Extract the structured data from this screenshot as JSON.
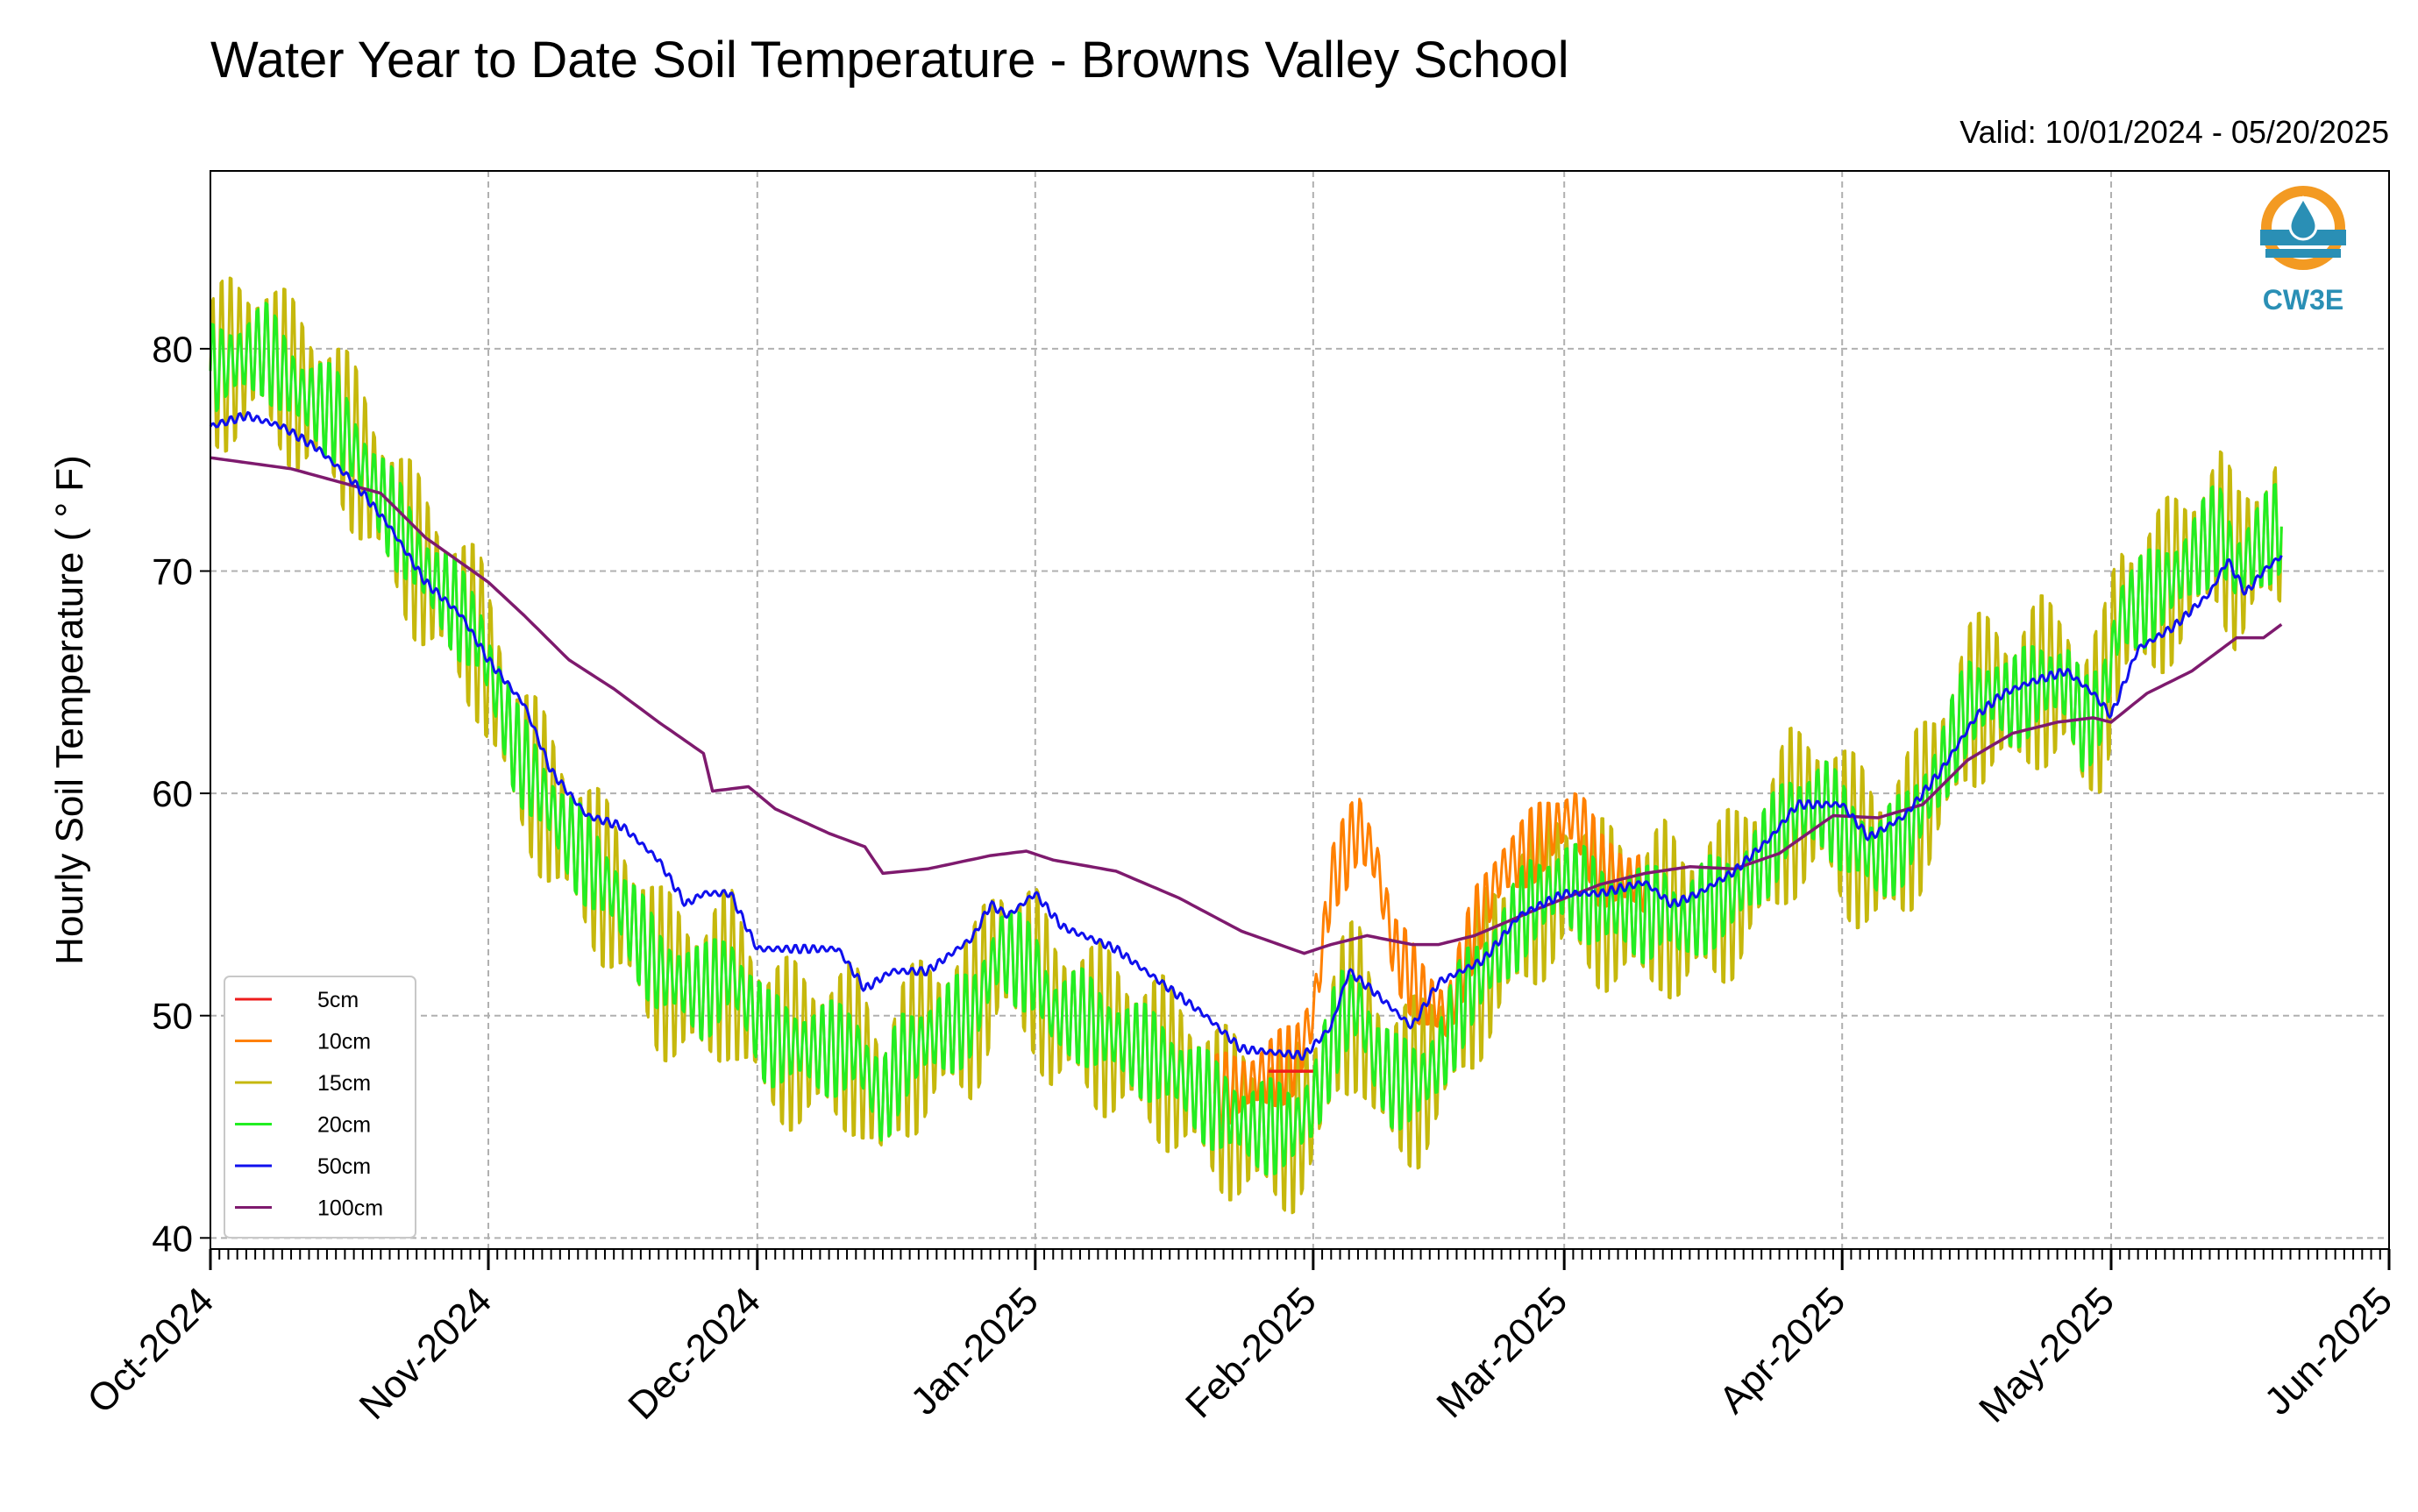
{
  "chart_data": {
    "type": "line",
    "title": "Water Year to Date Soil Temperature - Browns Valley School",
    "subtitle": "Valid: 10/01/2024 - 05/20/2025",
    "ylabel": "Hourly Soil Temperature ( ° F)",
    "xlabel": "",
    "ylim": [
      39.5,
      88
    ],
    "xlim": [
      "2024-10-01",
      "2025-06-01"
    ],
    "yticks": [
      40,
      50,
      60,
      70,
      80
    ],
    "xtick_labels": [
      "Oct-2024",
      "Nov-2024",
      "Dec-2024",
      "Jan-2025",
      "Feb-2025",
      "Mar-2025",
      "Apr-2025",
      "May-2025",
      "Jun-2025"
    ],
    "xtick_dates": [
      "2024-10-01",
      "2024-11-01",
      "2024-12-01",
      "2025-01-01",
      "2025-02-01",
      "2025-03-01",
      "2025-04-01",
      "2025-05-01",
      "2025-06-01"
    ],
    "grid": true,
    "legend_position": "lower-left",
    "logo_text": "CW3E",
    "series": [
      {
        "name": "5cm",
        "color": "#ee1c1c",
        "daily_amplitude": 0,
        "points": [
          [
            "2025-01-27",
            47.5
          ],
          [
            "2025-02-01",
            47.5
          ]
        ]
      },
      {
        "name": "10cm",
        "color": "#ff8000",
        "daily_amplitude": 4,
        "points": [
          [
            "2025-01-21",
            46.5
          ],
          [
            "2025-01-25",
            47
          ],
          [
            "2025-01-30",
            48
          ],
          [
            "2025-02-01",
            50
          ],
          [
            "2025-02-03",
            56
          ],
          [
            "2025-02-06",
            58.5
          ],
          [
            "2025-02-08",
            57
          ],
          [
            "2025-02-10",
            53
          ],
          [
            "2025-02-13",
            51
          ],
          [
            "2025-02-16",
            50
          ],
          [
            "2025-02-19",
            54
          ],
          [
            "2025-02-22",
            56.5
          ],
          [
            "2025-02-25",
            57.5
          ],
          [
            "2025-02-28",
            58.5
          ],
          [
            "2025-03-02",
            59
          ],
          [
            "2025-03-03",
            58.5
          ],
          [
            "2025-03-05",
            56.5
          ],
          [
            "2025-03-10",
            56
          ]
        ]
      },
      {
        "name": "15cm",
        "color": "#c6b80c",
        "daily_amplitude": 9,
        "points": [
          [
            "2024-10-01",
            79
          ],
          [
            "2024-10-07",
            80
          ],
          [
            "2024-10-11",
            78
          ],
          [
            "2024-10-15",
            77
          ],
          [
            "2024-10-19",
            74
          ],
          [
            "2024-10-25",
            70
          ],
          [
            "2024-10-31",
            67
          ],
          [
            "2024-11-04",
            62
          ],
          [
            "2024-11-10",
            58
          ],
          [
            "2024-11-15",
            55.5
          ],
          [
            "2024-11-20",
            52
          ],
          [
            "2024-11-25",
            51
          ],
          [
            "2024-11-28",
            52
          ],
          [
            "2024-12-02",
            49
          ],
          [
            "2024-12-07",
            48.5
          ],
          [
            "2024-12-12",
            48.5
          ],
          [
            "2024-12-15",
            46
          ],
          [
            "2024-12-17",
            48
          ],
          [
            "2024-12-20",
            49
          ],
          [
            "2024-12-25",
            50
          ],
          [
            "2024-12-28",
            53
          ],
          [
            "2025-01-01",
            52
          ],
          [
            "2025-01-03",
            50
          ],
          [
            "2025-01-06",
            50
          ],
          [
            "2025-01-10",
            49
          ],
          [
            "2025-01-15",
            48
          ],
          [
            "2025-01-18",
            47
          ],
          [
            "2025-01-21",
            46
          ],
          [
            "2025-01-25",
            45
          ],
          [
            "2025-01-30",
            45
          ],
          [
            "2025-02-01",
            46
          ],
          [
            "2025-02-04",
            50
          ],
          [
            "2025-02-06",
            50.5
          ],
          [
            "2025-02-08",
            48
          ],
          [
            "2025-02-10",
            47
          ],
          [
            "2025-02-13",
            47
          ],
          [
            "2025-02-15",
            48
          ],
          [
            "2025-02-18",
            51
          ],
          [
            "2025-02-22",
            53
          ],
          [
            "2025-02-25",
            55
          ],
          [
            "2025-03-01",
            56
          ],
          [
            "2025-03-05",
            55
          ],
          [
            "2025-03-10",
            54.5
          ],
          [
            "2025-03-12",
            55
          ],
          [
            "2025-03-14",
            54
          ],
          [
            "2025-03-17",
            55
          ],
          [
            "2025-03-20",
            55.5
          ],
          [
            "2025-03-23",
            57
          ],
          [
            "2025-03-26",
            59
          ],
          [
            "2025-03-30",
            59.5
          ],
          [
            "2025-04-02",
            58
          ],
          [
            "2025-04-05",
            57
          ],
          [
            "2025-04-08",
            58
          ],
          [
            "2025-04-12",
            61
          ],
          [
            "2025-04-15",
            64
          ],
          [
            "2025-04-18",
            64.5
          ],
          [
            "2025-04-20",
            64
          ],
          [
            "2025-04-23",
            65
          ],
          [
            "2025-04-26",
            65
          ],
          [
            "2025-04-28",
            63
          ],
          [
            "2025-04-30",
            64
          ],
          [
            "2025-05-02",
            68
          ],
          [
            "2025-05-06",
            69
          ],
          [
            "2025-05-09",
            70
          ],
          [
            "2025-05-13",
            72
          ],
          [
            "2025-05-15",
            70
          ],
          [
            "2025-05-17",
            71
          ],
          [
            "2025-05-20",
            72
          ]
        ]
      },
      {
        "name": "20cm",
        "color": "#22ee22",
        "daily_amplitude": 5,
        "points": [
          [
            "2024-10-01",
            79
          ],
          [
            "2024-10-07",
            80
          ],
          [
            "2024-10-11",
            78
          ],
          [
            "2024-10-15",
            77
          ],
          [
            "2024-10-19",
            74
          ],
          [
            "2024-10-25",
            70
          ],
          [
            "2024-10-31",
            67
          ],
          [
            "2024-11-04",
            62
          ],
          [
            "2024-11-10",
            58
          ],
          [
            "2024-11-15",
            55.5
          ],
          [
            "2024-11-20",
            52
          ],
          [
            "2024-11-25",
            51
          ],
          [
            "2024-11-28",
            52
          ],
          [
            "2024-12-02",
            49
          ],
          [
            "2024-12-07",
            48.5
          ],
          [
            "2024-12-12",
            48.5
          ],
          [
            "2024-12-15",
            46
          ],
          [
            "2024-12-17",
            48
          ],
          [
            "2024-12-20",
            49
          ],
          [
            "2024-12-25",
            50
          ],
          [
            "2024-12-28",
            53
          ],
          [
            "2025-01-01",
            52
          ],
          [
            "2025-01-03",
            50
          ],
          [
            "2025-01-06",
            50
          ],
          [
            "2025-01-10",
            49
          ],
          [
            "2025-01-15",
            48
          ],
          [
            "2025-01-18",
            47
          ],
          [
            "2025-01-21",
            46
          ],
          [
            "2025-01-25",
            45
          ],
          [
            "2025-01-30",
            45
          ],
          [
            "2025-02-01",
            46
          ],
          [
            "2025-02-04",
            50
          ],
          [
            "2025-02-06",
            50.5
          ],
          [
            "2025-02-08",
            48
          ],
          [
            "2025-02-10",
            47
          ],
          [
            "2025-02-13",
            47
          ],
          [
            "2025-02-15",
            48
          ],
          [
            "2025-02-18",
            51
          ],
          [
            "2025-02-22",
            53
          ],
          [
            "2025-02-25",
            55
          ],
          [
            "2025-03-01",
            56
          ],
          [
            "2025-03-05",
            55
          ],
          [
            "2025-03-10",
            54.5
          ],
          [
            "2025-03-12",
            55
          ],
          [
            "2025-03-14",
            54
          ],
          [
            "2025-03-17",
            55
          ],
          [
            "2025-03-20",
            55.5
          ],
          [
            "2025-03-23",
            57
          ],
          [
            "2025-03-26",
            59
          ],
          [
            "2025-03-30",
            59.5
          ],
          [
            "2025-04-02",
            58
          ],
          [
            "2025-04-05",
            57
          ],
          [
            "2025-04-08",
            58
          ],
          [
            "2025-04-12",
            61
          ],
          [
            "2025-04-15",
            64
          ],
          [
            "2025-04-18",
            64.5
          ],
          [
            "2025-04-20",
            64
          ],
          [
            "2025-04-23",
            65
          ],
          [
            "2025-04-26",
            65
          ],
          [
            "2025-04-28",
            63
          ],
          [
            "2025-04-30",
            64
          ],
          [
            "2025-05-02",
            68
          ],
          [
            "2025-05-06",
            69
          ],
          [
            "2025-05-09",
            70
          ],
          [
            "2025-05-13",
            72
          ],
          [
            "2025-05-15",
            70
          ],
          [
            "2025-05-17",
            71
          ],
          [
            "2025-05-20",
            72
          ]
        ]
      },
      {
        "name": "50cm",
        "color": "#1010ee",
        "daily_amplitude": 0.4,
        "points": [
          [
            "2024-10-01",
            76.5
          ],
          [
            "2024-10-05",
            77
          ],
          [
            "2024-10-09",
            76.5
          ],
          [
            "2024-10-13",
            75.5
          ],
          [
            "2024-10-17",
            74
          ],
          [
            "2024-10-21",
            72
          ],
          [
            "2024-10-25",
            69.5
          ],
          [
            "2024-10-29",
            68
          ],
          [
            "2024-11-01",
            66
          ],
          [
            "2024-11-05",
            64
          ],
          [
            "2024-11-08",
            61
          ],
          [
            "2024-11-12",
            59
          ],
          [
            "2024-11-16",
            58.5
          ],
          [
            "2024-11-20",
            57
          ],
          [
            "2024-11-23",
            55
          ],
          [
            "2024-11-25",
            55.5
          ],
          [
            "2024-11-28",
            55.5
          ],
          [
            "2024-12-01",
            53
          ],
          [
            "2024-12-05",
            53
          ],
          [
            "2024-12-10",
            53
          ],
          [
            "2024-12-13",
            51.2
          ],
          [
            "2024-12-16",
            52
          ],
          [
            "2024-12-20",
            52
          ],
          [
            "2024-12-25",
            53.5
          ],
          [
            "2024-12-27",
            55
          ],
          [
            "2024-12-29",
            54.5
          ],
          [
            "2025-01-01",
            55.5
          ],
          [
            "2025-01-04",
            54
          ],
          [
            "2025-01-10",
            53
          ],
          [
            "2025-01-15",
            51.5
          ],
          [
            "2025-01-20",
            50
          ],
          [
            "2025-01-24",
            48.5
          ],
          [
            "2025-01-31",
            48.2
          ],
          [
            "2025-02-03",
            49.5
          ],
          [
            "2025-02-05",
            52
          ],
          [
            "2025-02-08",
            51
          ],
          [
            "2025-02-12",
            49.5
          ],
          [
            "2025-02-15",
            51.5
          ],
          [
            "2025-02-20",
            52.5
          ],
          [
            "2025-02-24",
            54.5
          ],
          [
            "2025-03-01",
            55.5
          ],
          [
            "2025-03-05",
            55.5
          ],
          [
            "2025-03-10",
            56
          ],
          [
            "2025-03-13",
            55
          ],
          [
            "2025-03-16",
            55.5
          ],
          [
            "2025-03-20",
            56.5
          ],
          [
            "2025-03-24",
            58
          ],
          [
            "2025-03-27",
            59.5
          ],
          [
            "2025-04-01",
            59.5
          ],
          [
            "2025-04-04",
            58
          ],
          [
            "2025-04-08",
            59
          ],
          [
            "2025-04-12",
            61
          ],
          [
            "2025-04-16",
            63.5
          ],
          [
            "2025-04-19",
            64.5
          ],
          [
            "2025-04-22",
            65
          ],
          [
            "2025-04-26",
            65.5
          ],
          [
            "2025-04-29",
            64.5
          ],
          [
            "2025-05-01",
            63.5
          ],
          [
            "2025-05-04",
            66.5
          ],
          [
            "2025-05-08",
            67.5
          ],
          [
            "2025-05-12",
            69
          ],
          [
            "2025-05-14",
            70.5
          ],
          [
            "2025-05-16",
            69
          ],
          [
            "2025-05-18",
            70
          ],
          [
            "2025-05-20",
            70.7
          ]
        ]
      },
      {
        "name": "100cm",
        "color": "#7e1a6e",
        "daily_amplitude": 0,
        "points": [
          [
            "2024-10-01",
            75.1
          ],
          [
            "2024-10-10",
            74.6
          ],
          [
            "2024-10-20",
            73.5
          ],
          [
            "2024-10-25",
            71.5
          ],
          [
            "2024-11-01",
            69.5
          ],
          [
            "2024-11-05",
            68
          ],
          [
            "2024-11-10",
            66
          ],
          [
            "2024-11-15",
            64.7
          ],
          [
            "2024-11-20",
            63.2
          ],
          [
            "2024-11-25",
            61.8
          ],
          [
            "2024-11-26",
            60.1
          ],
          [
            "2024-11-30",
            60.3
          ],
          [
            "2024-12-03",
            59.3
          ],
          [
            "2024-12-09",
            58.2
          ],
          [
            "2024-12-13",
            57.6
          ],
          [
            "2024-12-15",
            56.4
          ],
          [
            "2024-12-20",
            56.6
          ],
          [
            "2024-12-27",
            57.2
          ],
          [
            "2024-12-31",
            57.4
          ],
          [
            "2025-01-03",
            57
          ],
          [
            "2025-01-10",
            56.5
          ],
          [
            "2025-01-17",
            55.3
          ],
          [
            "2025-01-24",
            53.8
          ],
          [
            "2025-01-31",
            52.8
          ],
          [
            "2025-02-03",
            53.2
          ],
          [
            "2025-02-07",
            53.6
          ],
          [
            "2025-02-12",
            53.2
          ],
          [
            "2025-02-15",
            53.2
          ],
          [
            "2025-02-19",
            53.6
          ],
          [
            "2025-02-26",
            54.8
          ],
          [
            "2025-03-05",
            55.9
          ],
          [
            "2025-03-10",
            56.4
          ],
          [
            "2025-03-15",
            56.7
          ],
          [
            "2025-03-20",
            56.6
          ],
          [
            "2025-03-25",
            57.3
          ],
          [
            "2025-03-31",
            59
          ],
          [
            "2025-04-05",
            58.9
          ],
          [
            "2025-04-10",
            59.5
          ],
          [
            "2025-04-15",
            61.5
          ],
          [
            "2025-04-20",
            62.7
          ],
          [
            "2025-04-25",
            63.2
          ],
          [
            "2025-04-29",
            63.4
          ],
          [
            "2025-05-01",
            63.2
          ],
          [
            "2025-05-05",
            64.5
          ],
          [
            "2025-05-10",
            65.5
          ],
          [
            "2025-05-15",
            67
          ],
          [
            "2025-05-18",
            67
          ],
          [
            "2025-05-20",
            67.6
          ]
        ]
      }
    ]
  }
}
